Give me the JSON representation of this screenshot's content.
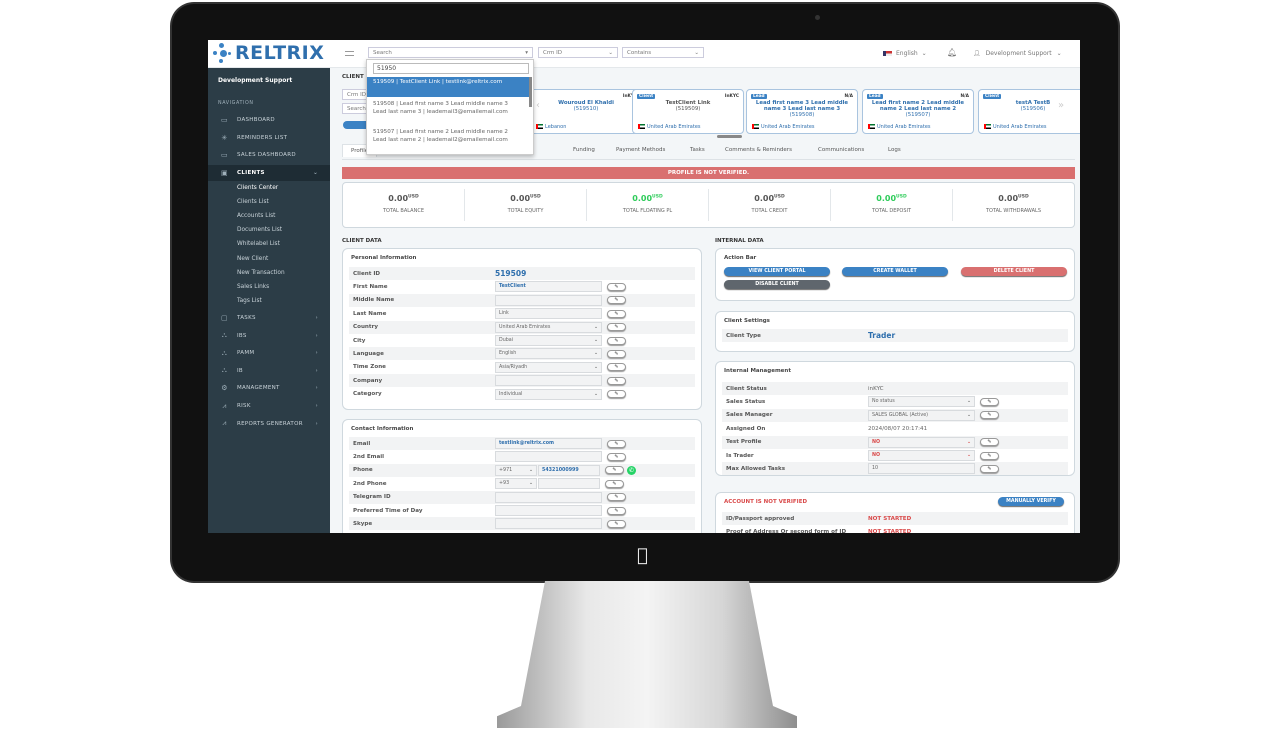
{
  "app": {
    "brand": "RELTRIX",
    "brand_color": "#2f6fad"
  },
  "header": {
    "search_placeholder": "Search",
    "search_query": "51950",
    "filter_field": "Crm ID",
    "filter_mode": "Contains",
    "language": "English",
    "user": "Development Support"
  },
  "search_results": [
    {
      "text": "519509 | TestClient Link | testlink@reltrix.com",
      "selected": true
    },
    {
      "text": "519508 | Lead first name 3 Lead middle name 3 Lead last name 3 | leademail3@emailemail.com",
      "selected": false
    },
    {
      "text": "519507 | Lead first name 2 Lead middle name 2 Lead last name 2 | leademail2@emailemail.com",
      "selected": false
    }
  ],
  "sidebar": {
    "title": "Development Support",
    "nav_label": "NAVIGATION",
    "items": [
      {
        "label": "DASHBOARD",
        "icon": "monitor-icon",
        "arrow": false
      },
      {
        "label": "REMINDERS LIST",
        "icon": "bug-icon",
        "arrow": false
      },
      {
        "label": "SALES DASHBOARD",
        "icon": "monitor-icon",
        "arrow": false
      },
      {
        "label": "CLIENTS",
        "icon": "id-card-icon",
        "arrow": true,
        "active": true
      }
    ],
    "sub_items": [
      "Clients Center",
      "Clients List",
      "Accounts List",
      "Documents List",
      "Whitelabel List",
      "New Client",
      "New Transaction",
      "Sales Links",
      "Tags List"
    ],
    "items_after": [
      {
        "label": "TASKS",
        "icon": "clipboard-icon"
      },
      {
        "label": "IBS",
        "icon": "network-icon"
      },
      {
        "label": "PAMM",
        "icon": "network-icon"
      },
      {
        "label": "IB",
        "icon": "network-icon"
      },
      {
        "label": "MANAGEMENT",
        "icon": "gear-icon"
      },
      {
        "label": "RISK",
        "icon": "chart-icon"
      },
      {
        "label": "REPORTS GENERATOR",
        "icon": "chart-icon"
      }
    ]
  },
  "page": {
    "section": "CLIENT",
    "crm_field": "Crm ID",
    "search_field": "Search"
  },
  "cards": [
    {
      "badge": "",
      "status": "InKYC",
      "name": "Wouroud  El Khaldi",
      "id": "(519510)",
      "country": "Lebanon"
    },
    {
      "badge": "Client",
      "status": "InKYC",
      "name": "TestClient  Link",
      "id": "(519509)",
      "country": "United Arab Emirates"
    },
    {
      "badge": "Lead",
      "status": "N/A",
      "name": "Lead first name 3 Lead middle name 3 Lead last name 3",
      "id": "(519508)",
      "country": "United Arab Emirates"
    },
    {
      "badge": "Lead",
      "status": "N/A",
      "name": "Lead first name 2 Lead middle name 2 Lead last name 2",
      "id": "(519507)",
      "country": "United Arab Emirates"
    },
    {
      "badge": "Client",
      "status": "I",
      "name": "testA  TestB",
      "id": "(519506)",
      "country": "United Arab Emirates"
    }
  ],
  "tabs": [
    "Profile",
    "Application",
    "Funding",
    "Payment Methods",
    "Tasks",
    "Comments & Reminders",
    "Communications",
    "Logs"
  ],
  "banner": "PROFILE IS NOT VERIFIED.",
  "stats": [
    {
      "value": "0.00",
      "unit": "USD",
      "label": "TOTAL BALANCE",
      "green": false
    },
    {
      "value": "0.00",
      "unit": "USD",
      "label": "TOTAL EQUITY",
      "green": false
    },
    {
      "value": "0.00",
      "unit": "USD",
      "label": "TOTAL FLOATING PL",
      "green": true
    },
    {
      "value": "0.00",
      "unit": "USD",
      "label": "TOTAL CREDIT",
      "green": false
    },
    {
      "value": "0.00",
      "unit": "USD",
      "label": "TOTAL DEPOSIT",
      "green": true
    },
    {
      "value": "0.00",
      "unit": "USD",
      "label": "TOTAL WITHDRAWALS",
      "green": false
    }
  ],
  "client_data": {
    "label": "CLIENT DATA",
    "personal": {
      "title": "Personal Information",
      "rows": [
        {
          "label": "Client ID",
          "value": "519509",
          "type": "id"
        },
        {
          "label": "First Name",
          "value": "TestClient",
          "type": "blue"
        },
        {
          "label": "Middle Name",
          "value": "",
          "type": "input"
        },
        {
          "label": "Last Name",
          "value": "Link",
          "type": "input"
        },
        {
          "label": "Country",
          "value": "United Arab Emirates",
          "type": "select"
        },
        {
          "label": "City",
          "value": "Dubai",
          "type": "select"
        },
        {
          "label": "Language",
          "value": "English",
          "type": "select"
        },
        {
          "label": "Time Zone",
          "value": "Asia/Riyadh",
          "type": "select"
        },
        {
          "label": "Company",
          "value": "",
          "type": "input"
        },
        {
          "label": "Category",
          "value": "Individual",
          "type": "select"
        }
      ]
    },
    "contact": {
      "title": "Contact Information",
      "rows": [
        {
          "label": "Email",
          "value": "testlink@reltrix.com",
          "type": "blue"
        },
        {
          "label": "2nd Email",
          "value": "",
          "type": "input"
        },
        {
          "label": "Phone",
          "code": "+971",
          "value": "54321000999",
          "type": "phone",
          "whatsapp": true
        },
        {
          "label": "2nd Phone",
          "code": "+93",
          "value": "",
          "type": "phone"
        },
        {
          "label": "Telegram ID",
          "value": "",
          "type": "input"
        },
        {
          "label": "Preferred Time of Day",
          "value": "",
          "type": "input"
        },
        {
          "label": "Skype",
          "value": "",
          "type": "input"
        }
      ]
    }
  },
  "internal": {
    "label": "INTERNAL DATA",
    "action_bar": {
      "title": "Action Bar",
      "buttons": [
        {
          "label": "VIEW CLIENT PORTAL",
          "color": "#3b82c4"
        },
        {
          "label": "CREATE WALLET",
          "color": "#3b82c4"
        },
        {
          "label": "DELETE CLIENT",
          "color": "#d97070"
        },
        {
          "label": "DISABLE CLIENT",
          "color": "#5f666d"
        }
      ]
    },
    "settings": {
      "title": "Client Settings",
      "client_type_label": "Client Type",
      "client_type": "Trader"
    },
    "management": {
      "title": "Internal Management",
      "rows": [
        {
          "label": "Client Status",
          "value": "inKYC",
          "type": "text"
        },
        {
          "label": "Sales Status",
          "value": "No status",
          "type": "select"
        },
        {
          "label": "Sales Manager",
          "value": "SALES GLOBAL (Active)",
          "type": "select"
        },
        {
          "label": "Assigned On",
          "value": "2024/08/07 20:17:41",
          "type": "text"
        },
        {
          "label": "Test Profile",
          "value": "NO",
          "type": "redselect"
        },
        {
          "label": "Is Trader",
          "value": "NO",
          "type": "redselect"
        },
        {
          "label": "Max Allowed Tasks",
          "value": "10",
          "type": "input"
        }
      ]
    },
    "verification": {
      "title": "ACCOUNT IS NOT VERIFIED",
      "button": "MANUALLY VERIFY",
      "rows": [
        {
          "label": "ID/Passport approved",
          "value": "NOT STARTED"
        },
        {
          "label": "Proof of Address Or second form of ID",
          "value": "NOT STARTED"
        }
      ]
    }
  }
}
